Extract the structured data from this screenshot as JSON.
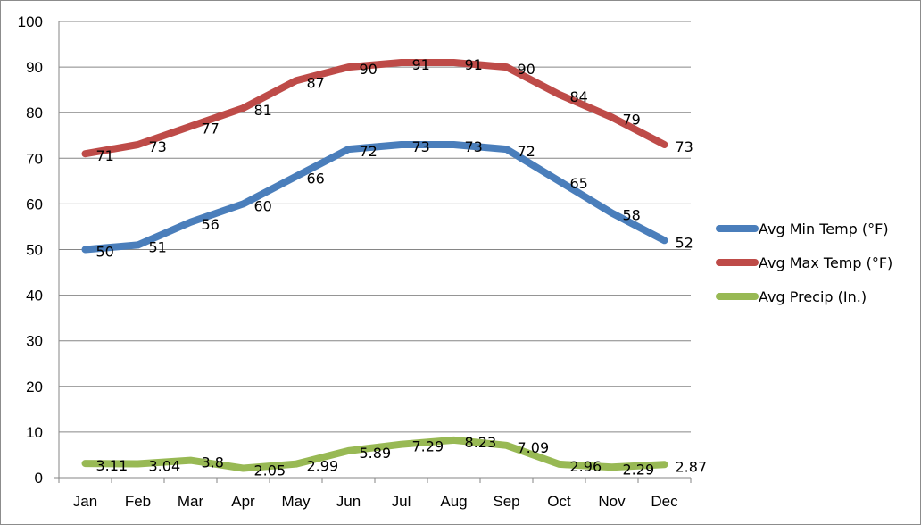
{
  "chart_data": {
    "type": "line",
    "categories": [
      "Jan",
      "Feb",
      "Mar",
      "Apr",
      "May",
      "Jun",
      "Jul",
      "Aug",
      "Sep",
      "Oct",
      "Nov",
      "Dec"
    ],
    "series": [
      {
        "name": "Avg Min Temp (°F)",
        "color": "#4a7ebb",
        "values": [
          50,
          51,
          56,
          60,
          66,
          72,
          73,
          73,
          72,
          65,
          58,
          52
        ],
        "labels": [
          "50",
          "51",
          "56",
          "60",
          "66",
          "72",
          "73",
          "73",
          "72",
          "65",
          "58",
          "52"
        ]
      },
      {
        "name": "Avg Max Temp (°F)",
        "color": "#be4b48",
        "values": [
          71,
          73,
          77,
          81,
          87,
          90,
          91,
          91,
          90,
          84,
          79,
          73
        ],
        "labels": [
          "71",
          "73",
          "77",
          "81",
          "87",
          "90",
          "91",
          "91",
          "90",
          "84",
          "79",
          "73"
        ]
      },
      {
        "name": "Avg Precip (In.)",
        "color": "#98b954",
        "values": [
          3.11,
          3.04,
          3.8,
          2.05,
          2.99,
          5.89,
          7.29,
          8.23,
          7.09,
          2.96,
          2.29,
          2.87
        ],
        "labels": [
          "3.11",
          "3.04",
          "3.8",
          "2.05",
          "2.99",
          "5.89",
          "7.29",
          "8.23",
          "7.09",
          "2.96",
          "2.29",
          "2.87"
        ]
      }
    ],
    "y_ticks": [
      "0",
      "10",
      "20",
      "30",
      "40",
      "50",
      "60",
      "70",
      "80",
      "90",
      "100"
    ],
    "ylim": [
      0,
      100
    ],
    "grid": true,
    "legend_position": "right",
    "data_labels": true
  }
}
